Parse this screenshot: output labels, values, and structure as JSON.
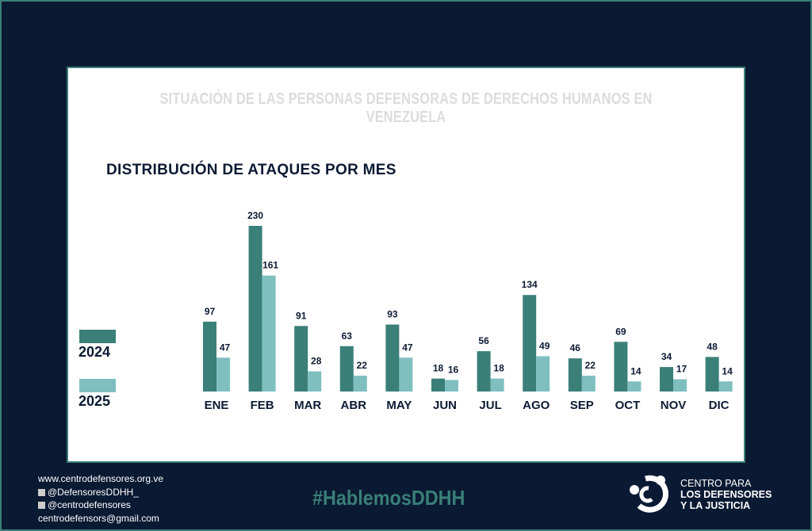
{
  "header": {
    "supertitle": "SITUACIÓN DE LAS PERSONAS DEFENSORAS DE DERECHOS HUMANOS EN VENEZUELA"
  },
  "colors": {
    "background": "#0b1a33",
    "series_2024": "#3a7f78",
    "series_2025": "#7fbfc0"
  },
  "chart_data": {
    "type": "bar",
    "title": "DISTRIBUCIÓN DE ATAQUES POR MES",
    "categories": [
      "ENE",
      "FEB",
      "MAR",
      "ABR",
      "MAY",
      "JUN",
      "JUL",
      "AGO",
      "SEP",
      "OCT",
      "NOV",
      "DIC"
    ],
    "series": [
      {
        "name": "2024",
        "values": [
          97,
          230,
          91,
          63,
          93,
          18,
          56,
          134,
          46,
          69,
          34,
          48
        ]
      },
      {
        "name": "2025",
        "values": [
          47,
          161,
          28,
          22,
          47,
          16,
          18,
          49,
          22,
          14,
          17,
          14
        ]
      }
    ],
    "xlabel": "",
    "ylabel": "",
    "ylim": [
      0,
      230
    ],
    "grid": false,
    "legend": "left"
  },
  "footer": {
    "website": "www.centrodefensores.org.ve",
    "x_handle": "@DefensoresDDHH_",
    "instagram": "@centrodefensores",
    "email": "centrodefensors@gmail.com",
    "hashtag": "#HablemosDDHH",
    "logo_line1": "CENTRO PARA",
    "logo_line2": "LOS DEFENSORES",
    "logo_line3": "Y LA JUSTICIA"
  }
}
